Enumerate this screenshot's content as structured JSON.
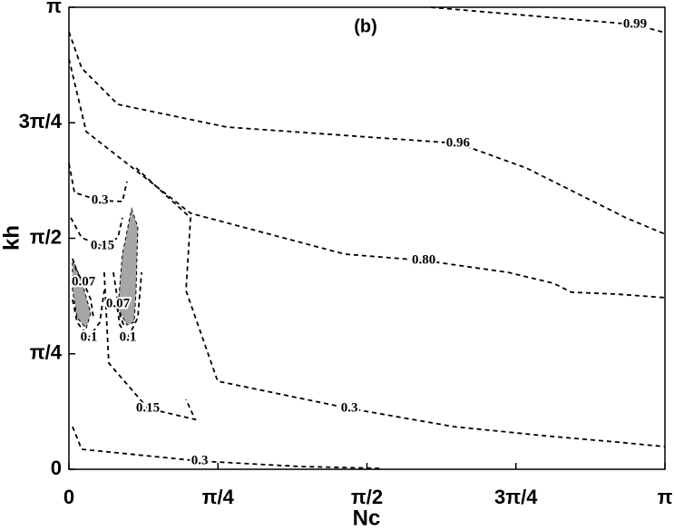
{
  "chart_data": {
    "type": "contour",
    "title": "(b)",
    "x_label": "Nc",
    "y_label": "kh",
    "xlim": [
      0,
      3.1416
    ],
    "ylim": [
      0,
      3.1416
    ],
    "xticks": [
      0,
      {
        "value": 0.7854,
        "label": "π/4"
      },
      {
        "value": 1.5708,
        "label": "π/2"
      },
      {
        "value": 2.3562,
        "label": "3π/4"
      },
      {
        "value": 3.1416,
        "label": "π"
      }
    ],
    "yticks": [
      0,
      {
        "value": 0.7854,
        "label": "π/4"
      },
      {
        "value": 1.5708,
        "label": "π/2"
      },
      {
        "value": 2.3562,
        "label": "3π/4"
      },
      {
        "value": 3.1416,
        "label": "π"
      }
    ],
    "line_color": "#000000",
    "fill_color": "#a6a6a6",
    "contours": [
      {
        "label": "0.99",
        "x": [
          1.908,
          2.984,
          3.142
        ],
        "y": [
          3.141,
          3.024,
          2.969
        ]
      },
      {
        "label": "0.96",
        "x": [
          0,
          0.067,
          0.258,
          0.832,
          2.051,
          2.41,
          2.697,
          2.936,
          3.142
        ],
        "y": [
          2.975,
          2.728,
          2.481,
          2.327,
          2.216,
          2.049,
          1.864,
          1.71,
          1.599
        ]
      },
      {
        "label": "0.80",
        "x": [
          0,
          0.091,
          0.354,
          0.641,
          1.454,
          1.87,
          2.314,
          2.554,
          2.649,
          2.888,
          3.142
        ],
        "y": [
          2.79,
          2.296,
          2.031,
          1.741,
          1.463,
          1.42,
          1.339,
          1.265,
          1.204,
          1.191,
          1.167
        ]
      },
      {
        "label": "0.3",
        "x": [
          0.354,
          0.641,
          0.617,
          0.784,
          1.478,
          2.028,
          2.506,
          2.888,
          3.142
        ],
        "y": [
          2.049,
          1.71,
          1.216,
          0.599,
          0.414,
          0.29,
          0.228,
          0.185,
          0.154
        ]
      },
      {
        "label": "0.3",
        "x": [
          0,
          0.029,
          0.163,
          0.282,
          0.306
        ],
        "y": [
          2.08,
          1.882,
          1.827,
          1.821,
          1.957
        ]
      },
      {
        "label": "0.15",
        "x": [
          0.01,
          0.067,
          0.177,
          0.258,
          0.282
        ],
        "y": [
          1.71,
          1.574,
          1.518,
          1.574,
          1.71
        ]
      },
      {
        "label": "0.07",
        "x": [
          0.019,
          0.043,
          0.077,
          0.115,
          0.129
        ],
        "y": [
          1.432,
          1.339,
          1.271,
          1.154,
          1.031
        ]
      },
      {
        "label": "0.1",
        "x": [
          0.019,
          0.043,
          0.105,
          0.163,
          0.186
        ],
        "y": [
          1.154,
          1.0,
          0.895,
          1.0,
          1.216
        ]
      },
      {
        "label": "0.07",
        "x": [
          0.234,
          0.249,
          0.258,
          0.273,
          0.292
        ],
        "y": [
          1.339,
          1.216,
          1.123,
          1.031,
          0.969
        ]
      },
      {
        "label": "0.1",
        "x": [
          0.249,
          0.268,
          0.311,
          0.363,
          0.383
        ],
        "y": [
          1.154,
          0.981,
          0.895,
          1.031,
          1.339
        ]
      },
      {
        "label": "0.15",
        "x": [
          0.186,
          0.21,
          0.416,
          0.665,
          0.617
        ],
        "y": [
          1.339,
          0.722,
          0.414,
          0.339,
          0.475
        ]
      },
      {
        "label": "0.3",
        "x": [
          0.019,
          0.067,
          0.689,
          1.215,
          1.645
        ],
        "y": [
          0.29,
          0.136,
          0.056,
          0.019,
          0.006
        ]
      }
    ],
    "regions": [
      {
        "x": [
          0.019,
          0.067,
          0.115,
          0.091,
          0.043,
          0.019
        ],
        "y": [
          1.432,
          1.278,
          1.062,
          0.957,
          1.031,
          1.216
        ]
      },
      {
        "x": [
          0.33,
          0.363,
          0.354,
          0.344,
          0.306,
          0.258,
          0.282
        ],
        "y": [
          1.771,
          1.648,
          1.216,
          1.0,
          0.981,
          1.092,
          1.463
        ]
      }
    ]
  }
}
